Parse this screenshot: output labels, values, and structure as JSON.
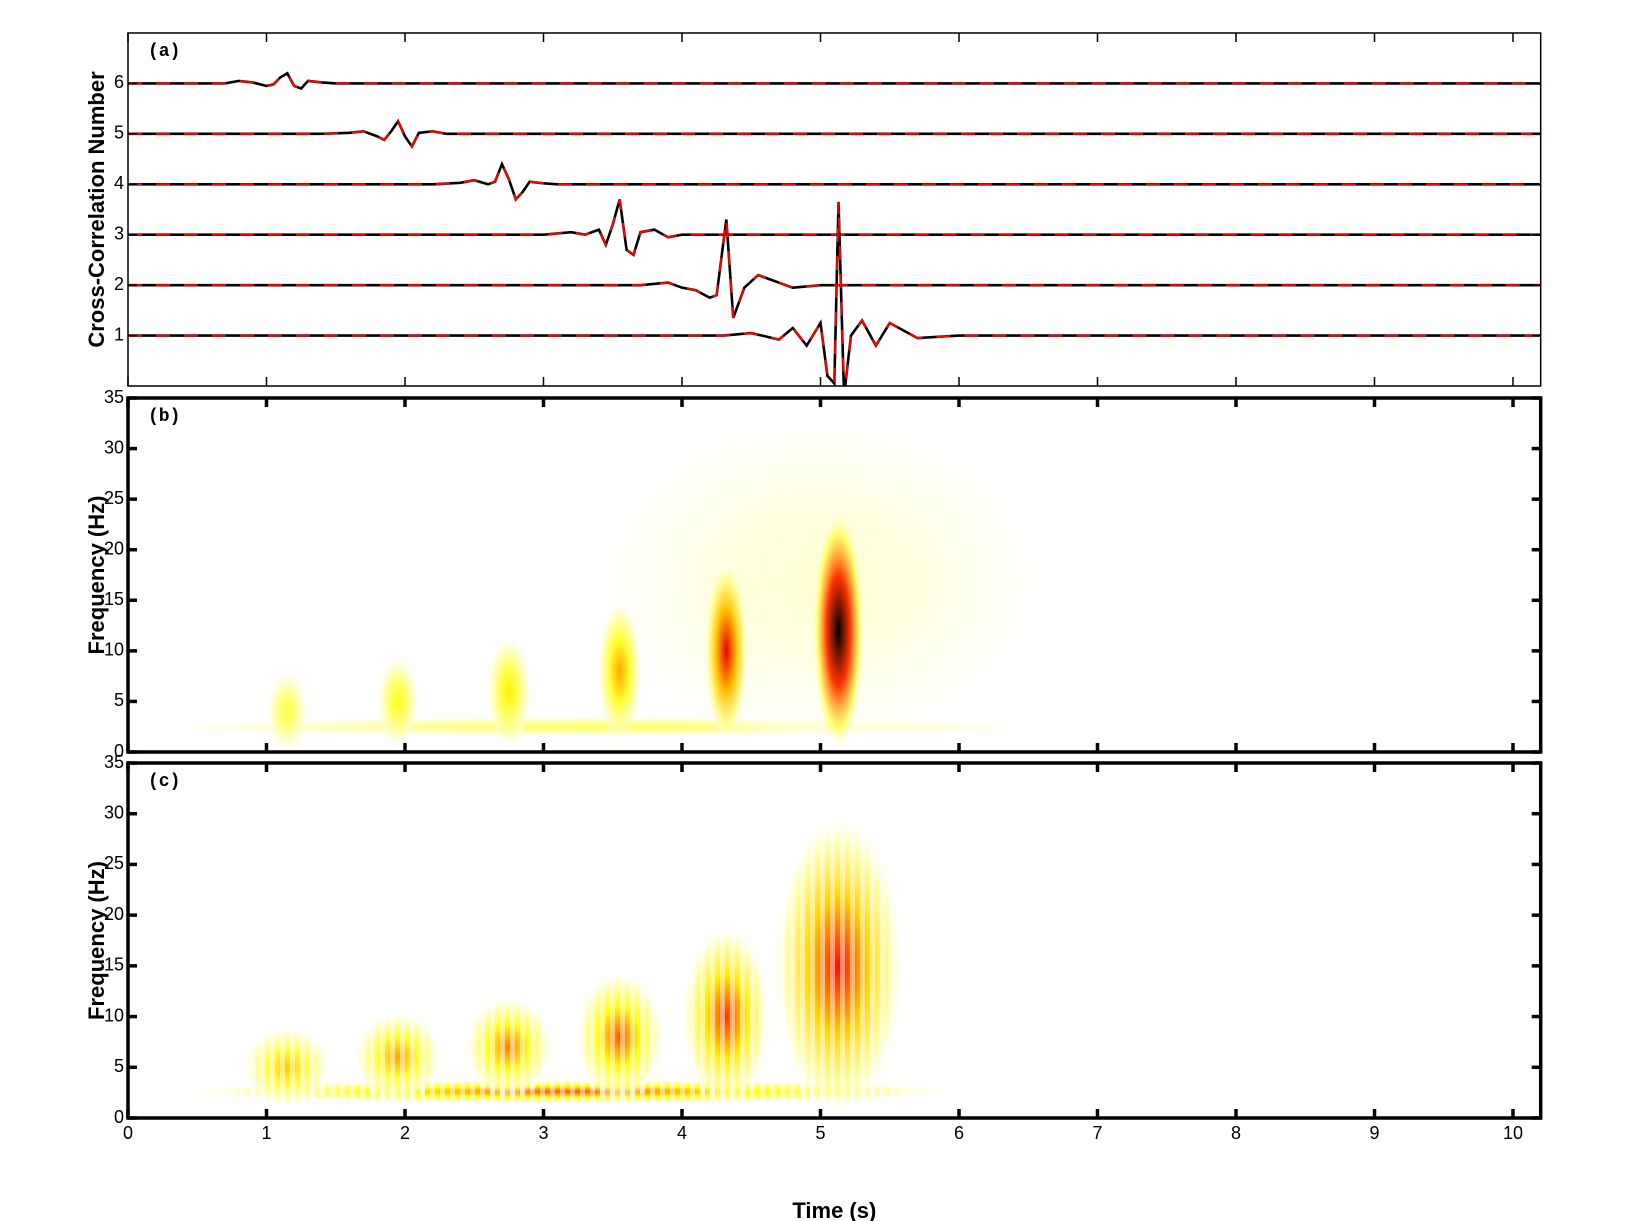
{
  "chart_data": [
    {
      "type": "line",
      "label": "(a)",
      "ylabel": "Cross-Correlation Number",
      "xlim": [
        0,
        10.2
      ],
      "xticks": [
        0,
        1,
        2,
        3,
        4,
        5,
        6,
        7,
        8,
        9,
        10
      ],
      "xtick_labels": false,
      "ylim": [
        0,
        7
      ],
      "yticks": [
        1,
        2,
        3,
        4,
        5,
        6
      ],
      "dash_color": "#ff0000",
      "series": [
        {
          "color": "#000000",
          "x": [
            0,
            0.7,
            0.8,
            0.9,
            1.0,
            1.05,
            1.1,
            1.15,
            1.2,
            1.25,
            1.3,
            1.4,
            1.5,
            10.2
          ],
          "values": [
            6,
            6,
            6.05,
            6.02,
            5.95,
            5.98,
            6.12,
            6.2,
            5.95,
            5.9,
            6.05,
            6.02,
            6,
            6
          ]
        },
        {
          "color": "#000000",
          "x": [
            0,
            1.4,
            1.6,
            1.7,
            1.8,
            1.85,
            1.9,
            1.95,
            2.0,
            2.05,
            2.1,
            2.2,
            2.3,
            2.4,
            10.2
          ],
          "values": [
            5,
            5,
            5.02,
            5.05,
            4.95,
            4.88,
            5.05,
            5.25,
            4.95,
            4.75,
            5.02,
            5.05,
            5,
            5,
            5
          ]
        },
        {
          "color": "#000000",
          "x": [
            0,
            2.2,
            2.4,
            2.5,
            2.6,
            2.65,
            2.7,
            2.75,
            2.8,
            2.85,
            2.9,
            3.0,
            3.1,
            10.2
          ],
          "values": [
            4,
            4,
            4.03,
            4.08,
            4.0,
            4.05,
            4.4,
            4.1,
            3.7,
            3.85,
            4.05,
            4.02,
            4,
            4
          ]
        },
        {
          "color": "#000000",
          "x": [
            0,
            3.0,
            3.2,
            3.3,
            3.4,
            3.45,
            3.5,
            3.55,
            3.6,
            3.65,
            3.7,
            3.8,
            3.9,
            4.0,
            10.2
          ],
          "values": [
            3,
            3,
            3.05,
            3.0,
            3.1,
            2.8,
            3.2,
            3.7,
            2.7,
            2.6,
            3.05,
            3.1,
            2.95,
            3,
            3
          ]
        },
        {
          "color": "#000000",
          "x": [
            0,
            3.7,
            3.9,
            4.0,
            4.1,
            4.2,
            4.25,
            4.32,
            4.37,
            4.45,
            4.55,
            4.65,
            4.8,
            5.0,
            10.2
          ],
          "values": [
            2,
            2,
            2.05,
            1.95,
            1.9,
            1.75,
            1.8,
            3.3,
            1.35,
            1.95,
            2.2,
            2.1,
            1.95,
            2,
            2
          ]
        },
        {
          "color": "#000000",
          "x": [
            0,
            4.3,
            4.5,
            4.7,
            4.8,
            4.9,
            5.0,
            5.05,
            5.1,
            5.13,
            5.17,
            5.22,
            5.3,
            5.4,
            5.5,
            5.7,
            6.0,
            10.2
          ],
          "values": [
            1,
            1,
            1.05,
            0.92,
            1.15,
            0.8,
            1.25,
            0.2,
            0.05,
            3.65,
            -0.2,
            1.0,
            1.3,
            0.8,
            1.25,
            0.95,
            1,
            1
          ]
        }
      ]
    },
    {
      "type": "heatmap",
      "label": "(b)",
      "ylabel": "Frequency (Hz)",
      "xlim": [
        0,
        10.2
      ],
      "xticks": [
        0,
        1,
        2,
        3,
        4,
        5,
        6,
        7,
        8,
        9,
        10
      ],
      "xtick_labels": false,
      "ylim": [
        0,
        35
      ],
      "yticks": [
        0,
        5,
        10,
        15,
        20,
        25,
        30,
        35
      ],
      "striped": false,
      "blobs": [
        {
          "x": 3.4,
          "y": 2.5,
          "width": 6.6,
          "height": 2,
          "value": 0.2
        },
        {
          "x": 5.0,
          "y": 17,
          "width": 3.4,
          "height": 34,
          "value": 0.06
        },
        {
          "x": 1.15,
          "y": 4,
          "width": 0.3,
          "height": 8,
          "value": 0.25
        },
        {
          "x": 1.95,
          "y": 5,
          "width": 0.3,
          "height": 9,
          "value": 0.3
        },
        {
          "x": 2.75,
          "y": 6,
          "width": 0.32,
          "height": 11,
          "value": 0.35
        },
        {
          "x": 3.55,
          "y": 8,
          "width": 0.32,
          "height": 14,
          "value": 0.45
        },
        {
          "x": 4.32,
          "y": 10,
          "width": 0.32,
          "height": 18,
          "value": 0.7
        },
        {
          "x": 5.13,
          "y": 12,
          "width": 0.38,
          "height": 24,
          "value": 1.0
        }
      ]
    },
    {
      "type": "heatmap",
      "label": "(c)",
      "ylabel": "Frequency (Hz)",
      "xlabel": "Time (s)",
      "xlim": [
        0,
        10.2
      ],
      "xticks": [
        0,
        1,
        2,
        3,
        4,
        5,
        6,
        7,
        8,
        9,
        10
      ],
      "xtick_labels": true,
      "ylim": [
        0,
        35
      ],
      "yticks": [
        0,
        5,
        10,
        15,
        20,
        25,
        30,
        35
      ],
      "striped": true,
      "blobs": [
        {
          "x": 3.2,
          "y": 2.6,
          "width": 5.8,
          "height": 2.4,
          "value": 0.55
        },
        {
          "x": 1.15,
          "y": 5,
          "width": 0.65,
          "height": 8,
          "value": 0.4
        },
        {
          "x": 1.95,
          "y": 6,
          "width": 0.65,
          "height": 9,
          "value": 0.45
        },
        {
          "x": 2.75,
          "y": 7,
          "width": 0.65,
          "height": 10,
          "value": 0.5
        },
        {
          "x": 3.55,
          "y": 8,
          "width": 0.65,
          "height": 13,
          "value": 0.55
        },
        {
          "x": 4.32,
          "y": 10,
          "width": 0.65,
          "height": 18,
          "value": 0.6
        },
        {
          "x": 5.13,
          "y": 15,
          "width": 0.95,
          "height": 30,
          "value": 0.65
        }
      ]
    }
  ]
}
